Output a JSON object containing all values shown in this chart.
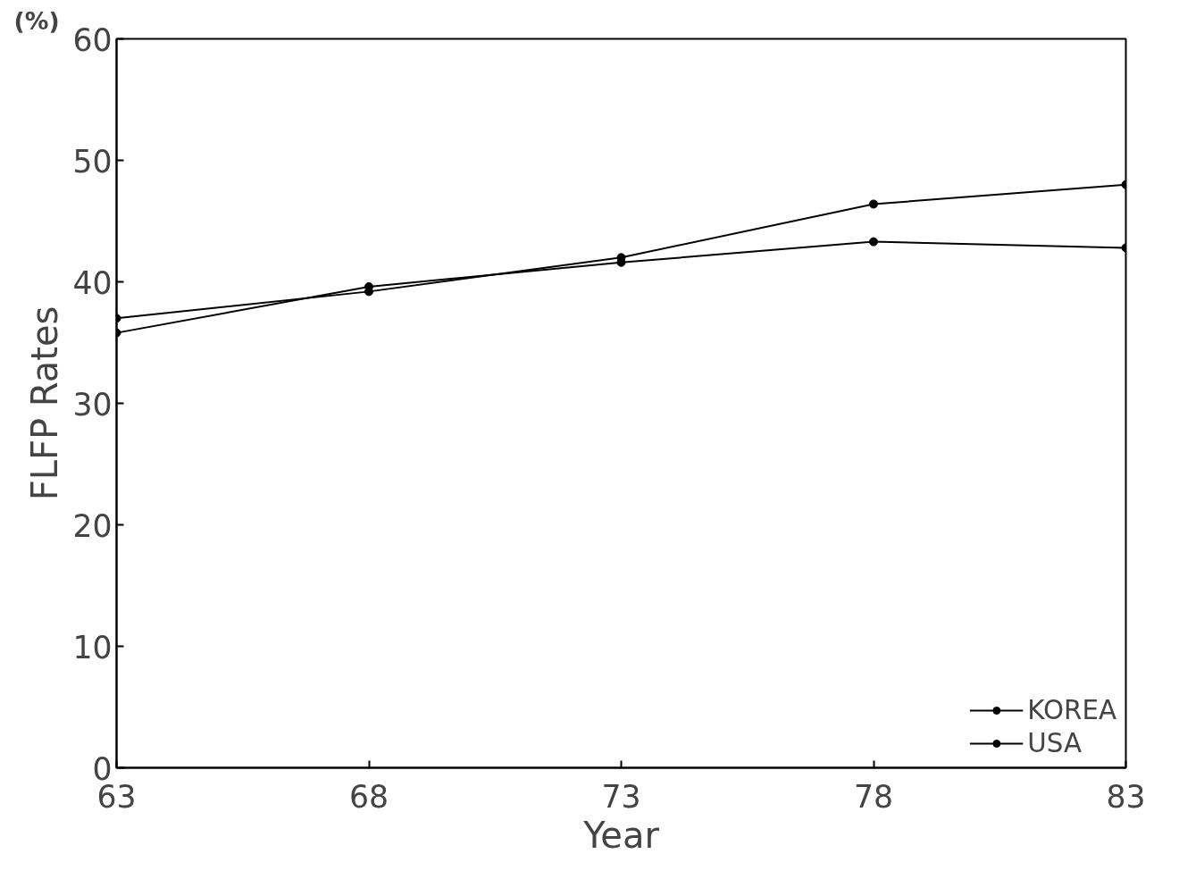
{
  "chart_data": {
    "type": "line",
    "xlabel": "Year",
    "ylabel": "FLFP Rates",
    "annotations": [
      "(%)"
    ],
    "x": [
      63,
      68,
      73,
      78,
      83
    ],
    "series": [
      {
        "name": "KOREA",
        "color": "#000000",
        "values": [
          35.8,
          39.6,
          41.6,
          43.3,
          42.8
        ]
      },
      {
        "name": "USA",
        "color": "#000000",
        "values": [
          37.0,
          39.2,
          42.0,
          46.4,
          48.0
        ]
      }
    ],
    "xlim": [
      63,
      83
    ],
    "ylim": [
      0,
      60
    ],
    "xticks": [
      63,
      68,
      73,
      78,
      83
    ],
    "yticks": [
      0,
      10,
      20,
      30,
      40,
      50,
      60
    ],
    "grid": false,
    "legend": "bottom right",
    "marker": "circle",
    "line_style": "solid"
  }
}
